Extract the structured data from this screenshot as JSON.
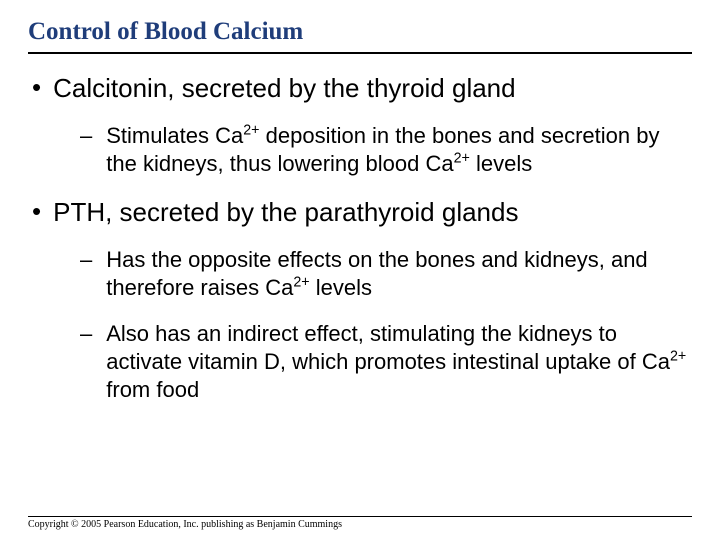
{
  "title": "Control of Blood Calcium",
  "title_color": "#1f3d7a",
  "title_fontsize": 25,
  "body_fontsize_l1": 26,
  "body_fontsize_l2": 22,
  "background_color": "#ffffff",
  "text_color": "#000000",
  "rule_color": "#000000",
  "bullets": [
    {
      "level": 1,
      "text": "Calcitonin, secreted by the thyroid gland"
    },
    {
      "level": 2,
      "text_html": "Stimulates Ca<sup>2+</sup> deposition in the bones and secretion by the kidneys, thus lowering blood Ca<sup>2+</sup> levels"
    },
    {
      "level": 1,
      "text": "PTH, secreted by the parathyroid glands"
    },
    {
      "level": 2,
      "text_html": "Has the opposite effects on the bones and kidneys, and therefore raises Ca<sup>2+</sup> levels"
    },
    {
      "level": 2,
      "text_html": "Also has an indirect effect, stimulating the kidneys to activate vitamin D, which promotes intestinal uptake of Ca<sup>2+</sup> from food"
    }
  ],
  "copyright": "Copyright © 2005 Pearson Education, Inc. publishing as Benjamin Cummings"
}
